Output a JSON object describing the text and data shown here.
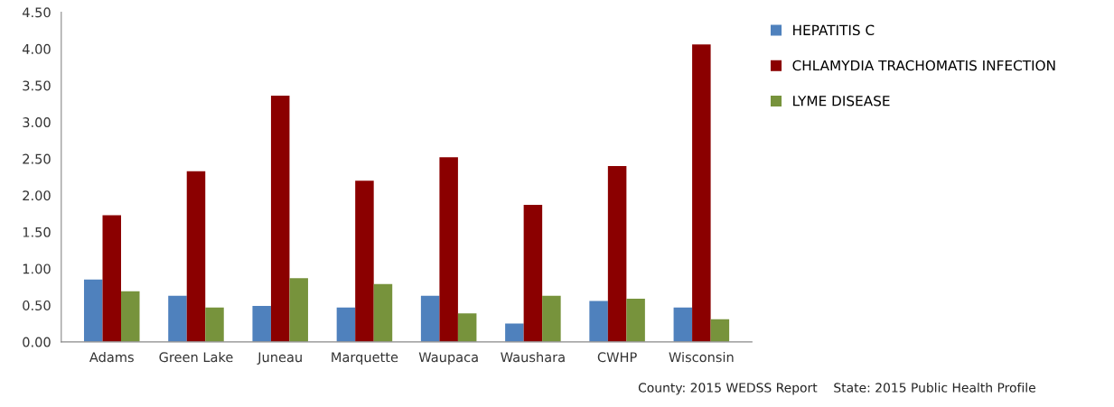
{
  "chart_data": {
    "type": "bar",
    "categories": [
      "Adams",
      "Green Lake",
      "Juneau",
      "Marquette",
      "Waupaca",
      "Waushara",
      "CWHP",
      "Wisconsin"
    ],
    "series": [
      {
        "name": "HEPATITIS C",
        "color": "#4f81bd",
        "values": [
          0.85,
          0.63,
          0.49,
          0.47,
          0.63,
          0.25,
          0.56,
          0.47
        ]
      },
      {
        "name": "CHLAMYDIA TRACHOMATIS INFECTION",
        "color": "#8b0000",
        "values": [
          1.73,
          2.33,
          3.36,
          2.2,
          2.52,
          1.87,
          2.4,
          4.06
        ]
      },
      {
        "name": "LYME DISEASE",
        "color": "#77933c",
        "values": [
          0.69,
          0.47,
          0.87,
          0.79,
          0.39,
          0.63,
          0.59,
          0.31
        ]
      }
    ],
    "ylim": [
      0,
      4.5
    ],
    "yticks": [
      {
        "value": 0,
        "label": "0.00"
      },
      {
        "value": 0.5,
        "label": "0.50"
      },
      {
        "value": 1,
        "label": "1.00"
      },
      {
        "value": 1.5,
        "label": "1.50"
      },
      {
        "value": 2,
        "label": "2.00"
      },
      {
        "value": 2.5,
        "label": "2.50"
      },
      {
        "value": 3,
        "label": "3.00"
      },
      {
        "value": 3.5,
        "label": "3.50"
      },
      {
        "value": 4,
        "label": "4.00"
      },
      {
        "value": 4.5,
        "label": "4.50"
      }
    ],
    "grid": false,
    "legend": "right",
    "annotations": [
      "County: 2015 WEDSS Report    State: 2015 Public Health Profile"
    ]
  }
}
